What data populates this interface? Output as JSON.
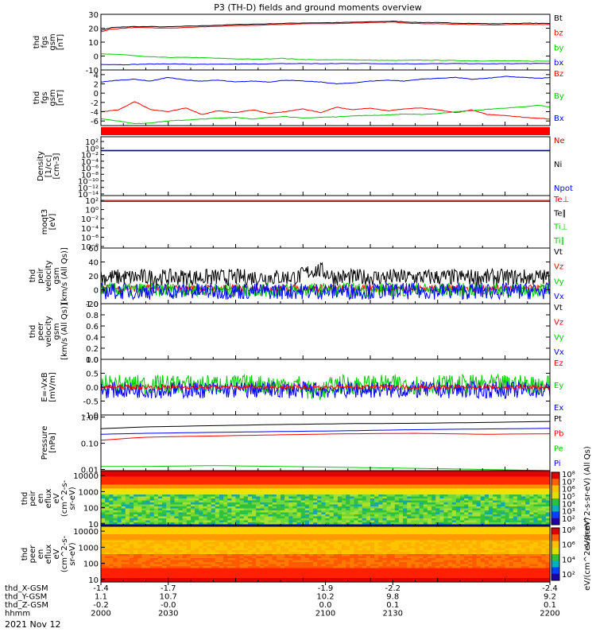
{
  "title": "P3 (TH-D) fields and ground moments overview",
  "date_label": "2021 Nov 12",
  "colors": {
    "black": "#000000",
    "red": "#ff0000",
    "green": "#00cc00",
    "blue": "#0000ff",
    "darkred": "#cc0000"
  },
  "chart_data": [
    {
      "id": "fgs_nT",
      "type": "line",
      "ylabel": [
        "thd",
        "fgs",
        "gsm",
        "[nT]"
      ],
      "ylim": [
        -10,
        30
      ],
      "yticks": [
        -10,
        0,
        10,
        20,
        30
      ],
      "legend": [
        {
          "label": "Bt",
          "color": "#000000"
        },
        {
          "label": "bz",
          "color": "#ff0000"
        },
        {
          "label": "by",
          "color": "#00cc00"
        },
        {
          "label": "bx",
          "color": "#0000ff"
        }
      ],
      "series": [
        {
          "name": "Bt",
          "color": "#000000",
          "x": [
            2000,
            2005,
            2015,
            2030,
            2045,
            2060,
            2075,
            2090,
            2105,
            2120,
            2130,
            2140,
            2150,
            2160,
            2175,
            2190,
            2200
          ],
          "y": [
            18.5,
            20.5,
            21.2,
            21.0,
            21.8,
            22.6,
            23.2,
            23.8,
            24.0,
            24.6,
            25.0,
            24.2,
            24.0,
            23.6,
            23.2,
            23.6,
            23.4
          ]
        },
        {
          "name": "bz",
          "color": "#ff0000",
          "x": [
            2000,
            2005,
            2015,
            2030,
            2045,
            2060,
            2075,
            2090,
            2105,
            2120,
            2130,
            2140,
            2150,
            2160,
            2175,
            2190,
            2200
          ],
          "y": [
            17.5,
            19.5,
            20.5,
            20.0,
            21.0,
            21.8,
            22.4,
            23.2,
            23.4,
            24.0,
            24.4,
            23.4,
            23.2,
            22.8,
            22.4,
            22.8,
            22.6
          ]
        },
        {
          "name": "by",
          "color": "#00cc00",
          "x": [
            2000,
            2010,
            2020,
            2030,
            2040,
            2050,
            2060,
            2070,
            2080,
            2090,
            2100,
            2110,
            2120,
            2130,
            2140,
            2150,
            2160,
            2170,
            2180,
            2190,
            2200
          ],
          "y": [
            1.5,
            1.0,
            -0.5,
            -1.0,
            -1.0,
            -1.5,
            -2.0,
            -2.3,
            -1.6,
            -2.5,
            -2.8,
            -2.6,
            -3.0,
            -3.2,
            -3.0,
            -3.0,
            -3.3,
            -3.5,
            -3.4,
            -3.6,
            -3.7
          ]
        },
        {
          "name": "bx",
          "color": "#0000ff",
          "x": [
            2000,
            2010,
            2020,
            2030,
            2040,
            2050,
            2060,
            2070,
            2080,
            2090,
            2100,
            2110,
            2120,
            2130,
            2140,
            2150,
            2160,
            2170,
            2180,
            2190,
            2200
          ],
          "y": [
            -6.0,
            -6.2,
            -5.8,
            -5.6,
            -5.9,
            -6.0,
            -5.8,
            -5.7,
            -5.5,
            -5.4,
            -5.5,
            -5.3,
            -5.4,
            -5.5,
            -5.6,
            -5.5,
            -5.4,
            -5.6,
            -5.5,
            -5.4,
            -5.3
          ]
        }
      ]
    },
    {
      "id": "fgs_dsl",
      "type": "line",
      "ylabel": [
        "thd",
        "fgs",
        "gsm",
        "[nT]"
      ],
      "ylim": [
        -7,
        5
      ],
      "yticks": [
        -6,
        -4,
        -2,
        0,
        2,
        4
      ],
      "legend": [
        {
          "label": "Bz",
          "color": "#ff0000"
        },
        {
          "label": "By",
          "color": "#00cc00"
        },
        {
          "label": "Bx",
          "color": "#0000ff"
        }
      ],
      "series": [
        {
          "name": "Bz",
          "color": "#ff0000",
          "x": [
            2000,
            2008,
            2015,
            2022,
            2030,
            2038,
            2045,
            2052,
            2060,
            2068,
            2075,
            2082,
            2090,
            2098,
            2105,
            2112,
            2120,
            2128,
            2135,
            2142,
            2150,
            2158,
            2165,
            2172,
            2180,
            2188,
            2195,
            2200
          ],
          "y": [
            -4.0,
            -3.6,
            -1.8,
            -3.5,
            -4.0,
            -3.2,
            -4.6,
            -3.8,
            -4.2,
            -3.6,
            -4.4,
            -4.0,
            -3.4,
            -4.2,
            -3.0,
            -3.6,
            -3.2,
            -3.8,
            -3.4,
            -3.2,
            -3.6,
            -4.2,
            -3.6,
            -4.6,
            -4.8,
            -5.2,
            -5.4,
            -5.6
          ]
        },
        {
          "name": "By",
          "color": "#00cc00",
          "x": [
            2000,
            2008,
            2015,
            2022,
            2030,
            2038,
            2045,
            2052,
            2060,
            2068,
            2075,
            2082,
            2090,
            2098,
            2105,
            2112,
            2120,
            2128,
            2135,
            2142,
            2150,
            2158,
            2165,
            2172,
            2180,
            2188,
            2195,
            2200
          ],
          "y": [
            -5.5,
            -6.0,
            -6.6,
            -6.4,
            -6.0,
            -5.8,
            -5.6,
            -5.4,
            -5.2,
            -5.6,
            -5.2,
            -5.0,
            -5.4,
            -5.2,
            -5.1,
            -4.9,
            -4.8,
            -4.7,
            -4.5,
            -4.6,
            -4.4,
            -4.0,
            -3.8,
            -3.5,
            -3.2,
            -3.0,
            -2.6,
            -3.0
          ]
        },
        {
          "name": "Bx",
          "color": "#0000ff",
          "x": [
            2000,
            2008,
            2015,
            2022,
            2030,
            2038,
            2045,
            2052,
            2060,
            2068,
            2075,
            2082,
            2090,
            2098,
            2105,
            2112,
            2120,
            2128,
            2135,
            2142,
            2150,
            2158,
            2165,
            2172,
            2180,
            2188,
            2195,
            2200
          ],
          "y": [
            2.4,
            2.8,
            3.0,
            2.6,
            3.4,
            2.8,
            2.6,
            2.8,
            2.4,
            2.6,
            2.4,
            2.8,
            2.6,
            2.4,
            2.0,
            2.2,
            2.6,
            2.8,
            2.6,
            3.0,
            3.2,
            3.4,
            3.0,
            3.2,
            3.6,
            3.4,
            3.2,
            3.4
          ]
        }
      ]
    },
    {
      "id": "flag_bar",
      "type": "bar",
      "values": [
        1
      ]
    },
    {
      "id": "density",
      "type": "line",
      "yscale": "log",
      "ylabel": [
        "Density",
        "[1/cc]",
        "[cm-3]"
      ],
      "ylim": [
        1e-14,
        1000.0
      ],
      "ytick_labels": [
        "10²",
        "10⁰",
        "10⁻²",
        "10⁻⁴",
        "10⁻⁶",
        "10⁻⁸",
        "10⁻¹⁰",
        "10⁻¹²",
        "10⁻¹⁴"
      ],
      "legend": [
        {
          "label": "Ne",
          "color": "#cc0000"
        },
        {
          "label": "Ni",
          "color": "#000000"
        },
        {
          "label": "Npot",
          "color": "#0000ff"
        }
      ],
      "series": [
        {
          "name": "Ne",
          "color": "#cc0000",
          "x": [
            2000,
            2200
          ],
          "y": [
            0.1,
            0.1
          ]
        },
        {
          "name": "Ni",
          "color": "#000000",
          "x": [
            2000,
            2200
          ],
          "y": [
            0.08,
            0.08
          ]
        },
        {
          "name": "Npot",
          "color": "#0000ff",
          "x": [
            2000,
            2200
          ],
          "y": [
            0.12,
            0.12
          ]
        }
      ]
    },
    {
      "id": "temp",
      "type": "line",
      "yscale": "log",
      "ylabel": [
        "moqt3",
        "[eV]"
      ],
      "ylim": [
        1e-08,
        1000.0
      ],
      "ytick_labels": [
        "10²",
        "10⁰",
        "10⁻²",
        "10⁻⁴",
        "10⁻⁶",
        "10⁻⁸"
      ],
      "legend": [
        {
          "label": "Te⊥",
          "color": "#ff0000"
        },
        {
          "label": "Te∥",
          "color": "#000000"
        },
        {
          "label": "Ti⊥",
          "color": "#00cc00"
        },
        {
          "label": "Ti∥",
          "color": "#00cc00"
        }
      ],
      "series": [
        {
          "name": "Te",
          "color": "#ff0000",
          "x": [
            2000,
            2200
          ],
          "y": [
            100,
            100
          ]
        },
        {
          "name": "Ti",
          "color": "#000000",
          "x": [
            2000,
            2200
          ],
          "y": [
            60,
            60
          ]
        }
      ]
    },
    {
      "id": "peir_velocity",
      "type": "line",
      "ylabel": [
        "thd",
        "peir",
        "velocity",
        "gsm",
        "[km/s (All Qs)]"
      ],
      "ylim": [
        -20,
        60
      ],
      "yticks": [
        -20,
        0,
        20,
        40,
        60
      ],
      "legend": [
        {
          "label": "Vt",
          "color": "#000000"
        },
        {
          "label": "Vz",
          "color": "#ff0000"
        },
        {
          "label": "Vy",
          "color": "#00cc00"
        },
        {
          "label": "Vx",
          "color": "#0000ff"
        }
      ],
      "series": [
        {
          "name": "Vt",
          "color": "#000000",
          "mean": 18,
          "noise": 12
        },
        {
          "name": "Vz",
          "color": "#ff0000",
          "mean": 2,
          "noise": 5
        },
        {
          "name": "Vy",
          "color": "#00cc00",
          "mean": 0,
          "noise": 10
        },
        {
          "name": "Vx",
          "color": "#0000ff",
          "mean": -2,
          "noise": 12
        }
      ]
    },
    {
      "id": "peer_velocity",
      "type": "line",
      "ylabel": [
        "thd",
        "peer",
        "velocity",
        "gsm",
        "[km/s (All Qs)]"
      ],
      "ylim": [
        0,
        1
      ],
      "yticks": [
        0.0,
        0.2,
        0.4,
        0.6,
        0.8,
        1.0
      ],
      "legend": [
        {
          "label": "Vt",
          "color": "#000000"
        },
        {
          "label": "Vz",
          "color": "#ff0000"
        },
        {
          "label": "Vy",
          "color": "#00cc00"
        },
        {
          "label": "Vx",
          "color": "#0000ff"
        }
      ],
      "series": []
    },
    {
      "id": "efield",
      "type": "line",
      "ylabel": [
        "E=-VxB",
        "[mV/m]"
      ],
      "ylim": [
        -1,
        1
      ],
      "yticks": [
        -1.0,
        -0.5,
        0.0,
        0.5,
        1.0
      ],
      "legend": [
        {
          "label": "Ez",
          "color": "#ff0000"
        },
        {
          "label": "Ey",
          "color": "#00cc00"
        },
        {
          "label": "Ex",
          "color": "#0000ff"
        }
      ],
      "series": [
        {
          "name": "Ey",
          "color": "#00cc00",
          "mean": 0.1,
          "noise": 0.35
        },
        {
          "name": "Ex",
          "color": "#0000ff",
          "mean": -0.1,
          "noise": 0.3
        },
        {
          "name": "Ez",
          "color": "#ff0000",
          "mean": 0.0,
          "noise": 0.08
        }
      ]
    },
    {
      "id": "pressure",
      "type": "line",
      "yscale": "log",
      "ylabel": [
        "Pressure",
        "[nPa]"
      ],
      "ylim": [
        0.009,
        1.2
      ],
      "yticks": [
        0.01,
        0.1,
        1.0
      ],
      "ytick_labels": [
        "0.01",
        "0.10",
        "1.00"
      ],
      "legend": [
        {
          "label": "Pt",
          "color": "#000000"
        },
        {
          "label": "Pb",
          "color": "#ff0000"
        },
        {
          "label": "Pe",
          "color": "#00cc00"
        },
        {
          "label": "Pi",
          "color": "#0000ff"
        }
      ],
      "series": [
        {
          "name": "Pt",
          "color": "#000000",
          "x": [
            2000,
            2020,
            2050,
            2080,
            2110,
            2140,
            2170,
            2200
          ],
          "y": [
            0.36,
            0.42,
            0.47,
            0.52,
            0.56,
            0.58,
            0.62,
            0.68
          ]
        },
        {
          "name": "Pi",
          "color": "#0000ff",
          "x": [
            2000,
            2020,
            2050,
            2080,
            2110,
            2140,
            2170,
            2200
          ],
          "y": [
            0.22,
            0.24,
            0.26,
            0.28,
            0.3,
            0.33,
            0.35,
            0.37
          ]
        },
        {
          "name": "Pb",
          "color": "#ff0000",
          "x": [
            2000,
            2020,
            2050,
            2080,
            2110,
            2140,
            2170,
            2200
          ],
          "y": [
            0.13,
            0.17,
            0.19,
            0.21,
            0.23,
            0.24,
            0.22,
            0.23
          ]
        },
        {
          "name": "Pe",
          "color": "#00cc00",
          "x": [
            2000,
            2020,
            2050,
            2080,
            2110,
            2140,
            2170,
            2200
          ],
          "y": [
            0.013,
            0.013,
            0.014,
            0.013,
            0.012,
            0.011,
            0.01,
            0.009
          ]
        }
      ]
    },
    {
      "id": "peir_spec",
      "type": "heatmap",
      "ylabel": [
        "thd",
        "peir",
        "en",
        "eflux",
        "eV",
        "(cm^2-s-",
        "sr-eV)"
      ],
      "yscale": "log",
      "ylim": [
        7,
        20000
      ],
      "yticks": [
        10,
        100,
        1000,
        10000
      ],
      "colorbar_label": "eV/(cm^2-s-sr-eV) (All Qs)",
      "colorbar_ticks": [
        "10⁸",
        "10⁷",
        "10⁶",
        "10⁵",
        "10⁴",
        "10³",
        "10²"
      ]
    },
    {
      "id": "peer_spec",
      "type": "heatmap",
      "ylabel": [
        "thd",
        "peer",
        "en",
        "eflux",
        "eV",
        "(cm^2-s-",
        "sr-eV)"
      ],
      "yscale": "log",
      "ylim": [
        7,
        20000
      ],
      "yticks": [
        10,
        100,
        1000,
        10000
      ],
      "colorbar_label": "eV/(cm^2-s-sr-eV)",
      "colorbar_ticks": [
        "10⁸",
        "10⁶",
        "10⁴",
        "10²"
      ]
    }
  ],
  "x_axis": {
    "row_labels": [
      "thd_X-GSM",
      "thd_Y-GSM",
      "thd_Z-GSM",
      "hhmm"
    ],
    "columns": [
      {
        "x": 2000,
        "values": [
          "-1.4",
          "1.1",
          "-0.2",
          "2000"
        ]
      },
      {
        "x": 2030,
        "values": [
          "-1.7",
          "10.7",
          "-0.0",
          "2030"
        ]
      },
      {
        "x": 2100,
        "values": [
          "-1.9",
          "10.2",
          "0.0",
          "2100"
        ]
      },
      {
        "x": 2130,
        "values": [
          "-2.2",
          "9.8",
          "0.1",
          "2130"
        ]
      },
      {
        "x": 2200,
        "values": [
          "-2.4",
          "9.2",
          "0.1",
          "2200"
        ]
      }
    ],
    "xlim": [
      2000,
      2200
    ]
  }
}
